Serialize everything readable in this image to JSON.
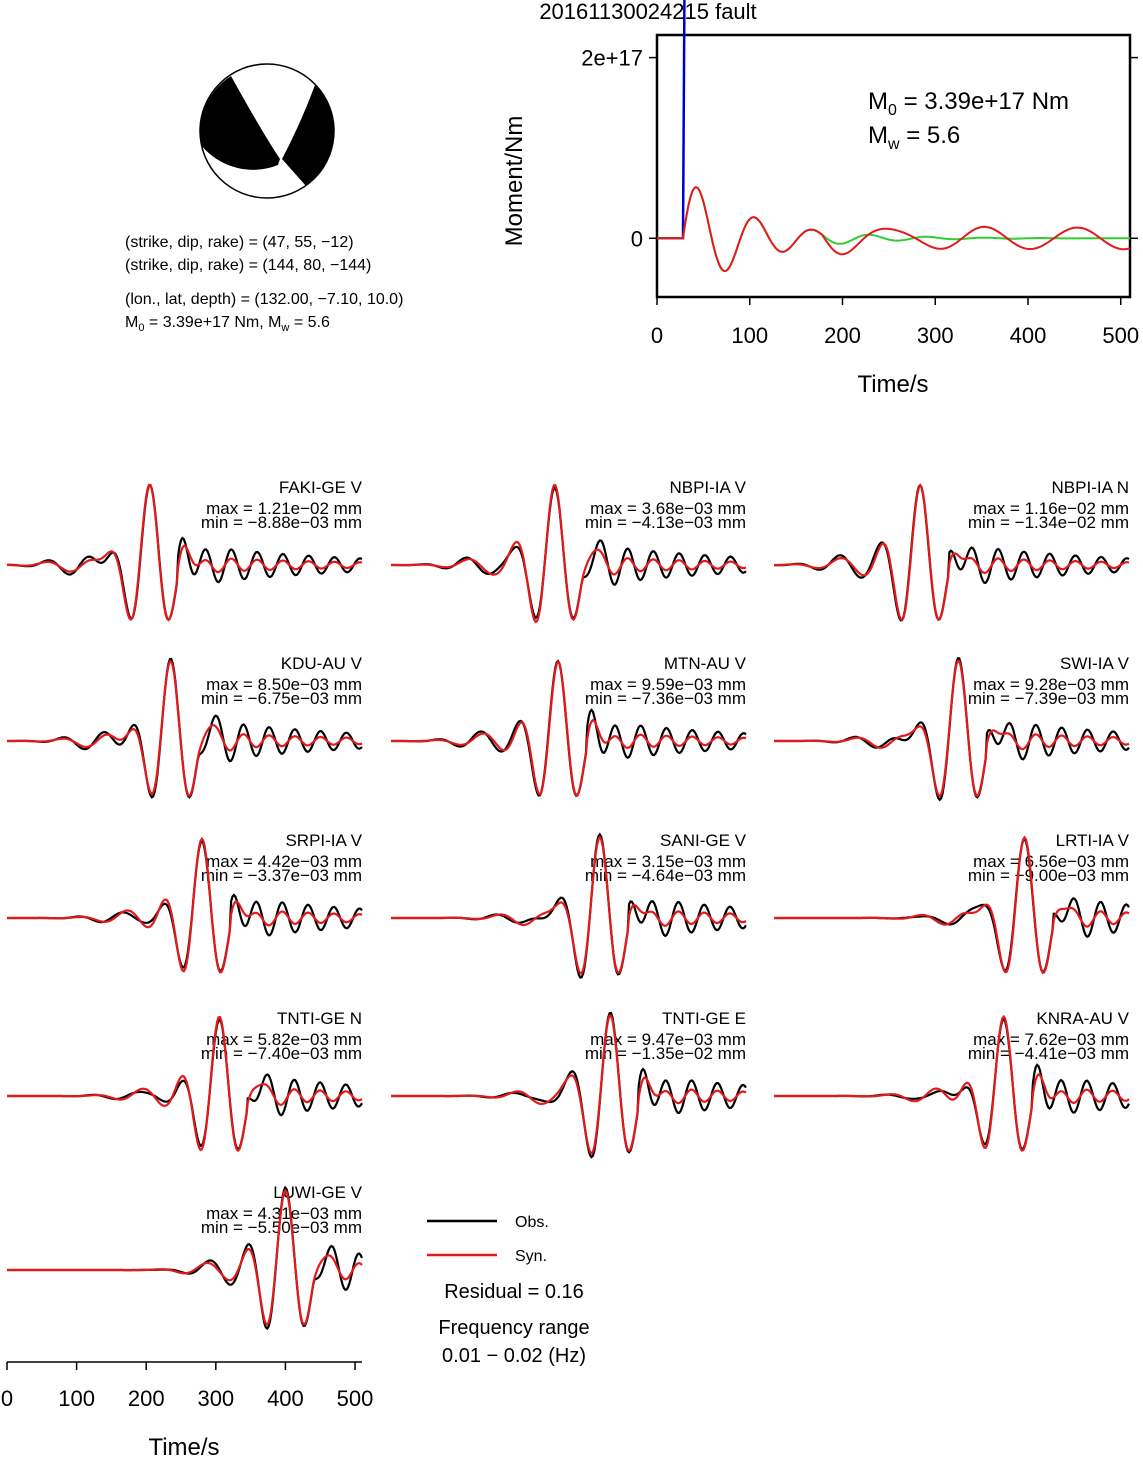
{
  "title": "20161130024215 fault",
  "mechanism": {
    "nodal1": "(strike, dip, rake) = (47, 55, −12)",
    "nodal2": "(strike, dip, rake) = (144, 80, −144)",
    "location": "(lon., lat, depth) = (132.00, −7.10, 10.0)",
    "moment_prefix": "M",
    "moment_text": " = 3.39e+17 Nm, M",
    "magnitude_text": " = 5.6"
  },
  "moment_plot": {
    "m0_value": " = 3.39e+17 Nm",
    "mw_value": " = 5.6",
    "ylabel": "Moment/Nm",
    "xlabel": "Time/s",
    "xticks": [
      0,
      100,
      200,
      300,
      400,
      500
    ],
    "yticks": [
      {
        "value": 0,
        "label": "0"
      },
      {
        "value": 2e+17,
        "label": "2e+17"
      }
    ],
    "xlim": [
      0,
      510
    ],
    "ylim": [
      -6.5e+16,
      2.25e+17
    ]
  },
  "waveform_axis": {
    "xlabel": "Time/s",
    "xticks": [
      0,
      100,
      200,
      300,
      400,
      500
    ],
    "xlim": [
      0,
      510
    ]
  },
  "legend": {
    "obs_label": "Obs.",
    "syn_label": "Syn.",
    "residual": "Residual = 0.16",
    "freq_title": "Frequency range",
    "freq_value": "0.01 − 0.02 (Hz)"
  },
  "colors": {
    "obs": "#000000",
    "syn": "#e31a1c",
    "stf": "#0000cd",
    "moment_fit": "#33cc33"
  },
  "chart_data": [
    {
      "type": "line",
      "title": "",
      "xlabel": "Time/s",
      "ylabel": "Moment/Nm",
      "series": [
        {
          "name": "",
          "x": [
            0,
            20,
            28,
            30,
            510
          ],
          "y": [
            0,
            0,
            0,
            3.39e+17,
            3.39e+17
          ]
        }
      ]
    },
    {
      "type": "line",
      "stations": [
        {
          "name": "FAKI-GE V",
          "max": "max = 1.21e−02 mm",
          "min": "min = −8.88e−03 mm",
          "peak_t": 205
        },
        {
          "name": "NBPI-IA V",
          "max": "max = 3.68e−03 mm",
          "min": "min = −4.13e−03 mm",
          "peak_t": 235
        },
        {
          "name": "NBPI-IA N",
          "max": "max = 1.16e−02 mm",
          "min": "min = −1.34e−02 mm",
          "peak_t": 210
        },
        {
          "name": "KDU-AU V",
          "max": "max = 8.50e−03 mm",
          "min": "min = −6.75e−03 mm",
          "peak_t": 235
        },
        {
          "name": "MTN-AU V",
          "max": "max = 9.59e−03 mm",
          "min": "min = −7.36e−03 mm",
          "peak_t": 240
        },
        {
          "name": "SWI-IA V",
          "max": "max = 9.28e−03 mm",
          "min": "min = −7.39e−03 mm",
          "peak_t": 265
        },
        {
          "name": "SRPI-IA V",
          "max": "max = 4.42e−03 mm",
          "min": "min = −3.37e−03 mm",
          "peak_t": 280
        },
        {
          "name": "SANI-GE V",
          "max": "max = 3.15e−03 mm",
          "min": "min = −4.64e−03 mm",
          "peak_t": 300
        },
        {
          "name": "LRTI-IA V",
          "max": "max = 6.56e−03 mm",
          "min": "min = −9.00e−03 mm",
          "peak_t": 360
        },
        {
          "name": "TNTI-GE N",
          "max": "max = 5.82e−03 mm",
          "min": "min = −7.40e−03 mm",
          "peak_t": 305
        },
        {
          "name": "TNTI-GE E",
          "max": "max = 9.47e−03 mm",
          "min": "min = −1.35e−02 mm",
          "peak_t": 315
        },
        {
          "name": "KNRA-AU V",
          "max": "max = 7.62e−03 mm",
          "min": "min = −4.41e−03 mm",
          "peak_t": 330
        },
        {
          "name": "LUWI-GE V",
          "max": "max = 4.31e−03 mm",
          "min": "min = −5.50e−03 mm",
          "peak_t": 400
        }
      ]
    }
  ]
}
